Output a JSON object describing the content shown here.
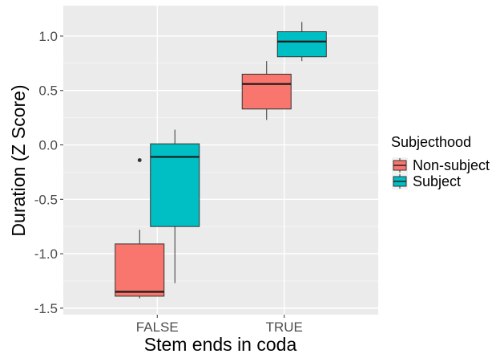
{
  "chart_data": {
    "type": "boxplot",
    "title": "",
    "xlabel": "Stem ends in coda",
    "ylabel": "Duration (Z Score)",
    "categories": [
      "FALSE",
      "TRUE"
    ],
    "y_ticks": [
      -1.5,
      -1.0,
      -0.5,
      0.0,
      0.5,
      1.0
    ],
    "y_tick_labels": [
      "-1.5",
      "-1.0",
      "-0.5",
      "0.0",
      "0.5",
      "1.0"
    ],
    "ylim": [
      -1.56,
      1.28
    ],
    "grid": true,
    "legend": {
      "title": "Subjecthood",
      "placement": "right",
      "entries": [
        "Non-subject",
        "Subject"
      ]
    },
    "colors": {
      "panel_background": "#ebebeb",
      "grid": "#ffffff",
      "Non-subject": "#f8766d",
      "Subject": "#00bfc4"
    },
    "series": [
      {
        "name": "Non-subject",
        "boxes": [
          {
            "category": "FALSE",
            "whisker_low": -1.41,
            "q1": -1.39,
            "median": -1.35,
            "q3": -0.91,
            "whisker_high": -0.78,
            "outliers": [
              -0.14
            ]
          },
          {
            "category": "TRUE",
            "whisker_low": 0.23,
            "q1": 0.33,
            "median": 0.56,
            "q3": 0.65,
            "whisker_high": 0.77,
            "outliers": []
          }
        ]
      },
      {
        "name": "Subject",
        "boxes": [
          {
            "category": "FALSE",
            "whisker_low": -1.27,
            "q1": -0.75,
            "median": -0.11,
            "q3": 0.01,
            "whisker_high": 0.14,
            "outliers": []
          },
          {
            "category": "TRUE",
            "whisker_low": 0.77,
            "q1": 0.81,
            "median": 0.95,
            "q3": 1.04,
            "whisker_high": 1.13,
            "outliers": []
          }
        ]
      }
    ]
  }
}
